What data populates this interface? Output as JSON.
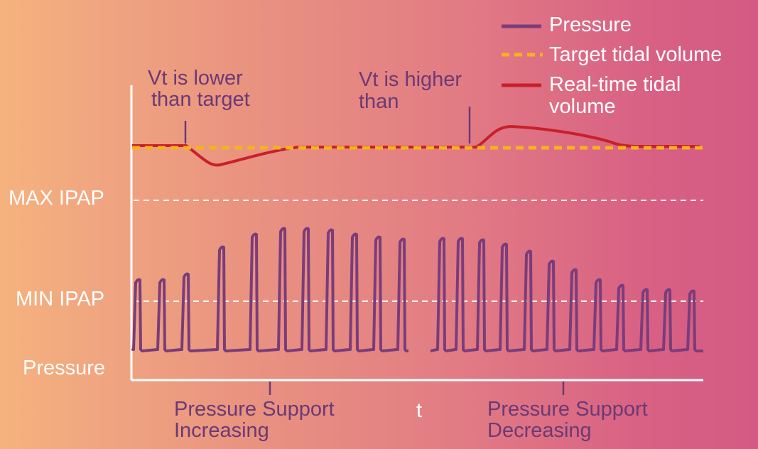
{
  "legend": {
    "pressure": "Pressure",
    "target": "Target tidal volume",
    "realtime_line1": "Real-time tidal",
    "realtime_line2": "volume"
  },
  "annotations": {
    "lower_line1": "Vt is lower",
    "lower_line2": "than target",
    "higher_line1": "Vt is higher",
    "higher_line2": "than"
  },
  "y_labels": {
    "max_ipap": "MAX IPAP",
    "min_ipap": "MIN IPAP",
    "pressure": "Pressure"
  },
  "x_labels": {
    "increasing_line1": "Pressure Support",
    "increasing_line2": "Increasing",
    "t": "t",
    "decreasing_line1": "Pressure Support",
    "decreasing_line2": "Decreasing"
  },
  "colors": {
    "pressure": "#7a3d7a",
    "target": "#f6b21e",
    "realtime": "#c8202a",
    "axis": "#ffffff"
  }
}
